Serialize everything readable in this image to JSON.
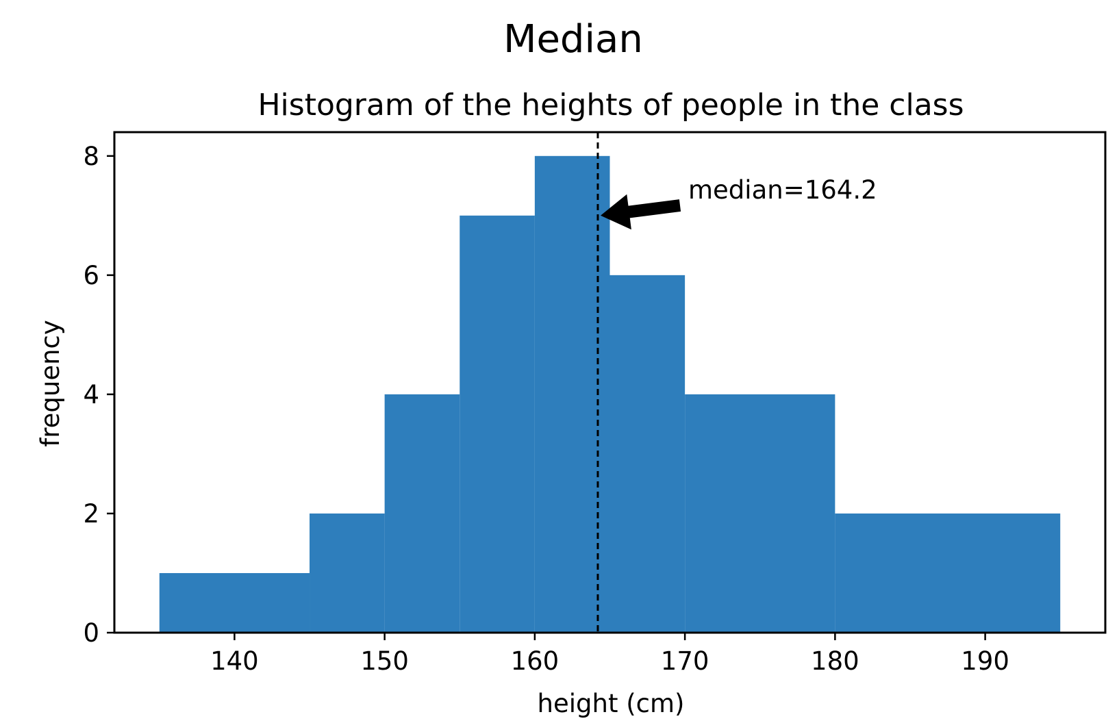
{
  "figure_title": "Median",
  "chart_data": {
    "type": "histogram",
    "title": "Histogram of the heights of people in the class",
    "xlabel": "height (cm)",
    "ylabel": "frequency",
    "xlim": [
      132,
      198
    ],
    "ylim": [
      0,
      8.4
    ],
    "xticks": [
      140,
      150,
      160,
      170,
      180,
      190
    ],
    "yticks": [
      0,
      2,
      4,
      6,
      8
    ],
    "bin_edges": [
      135,
      145,
      150,
      155,
      160,
      165,
      170,
      180,
      195
    ],
    "counts": [
      1,
      2,
      4,
      7,
      8,
      6,
      4,
      2
    ],
    "bar_color": "#2e7ebc",
    "median": 164.2,
    "median_line_style": "dashed",
    "median_line_color": "#000000",
    "annotation": {
      "text": "median=164.2",
      "arrow_target": [
        164.2,
        7.0
      ]
    },
    "grid": false,
    "legend": false
  }
}
